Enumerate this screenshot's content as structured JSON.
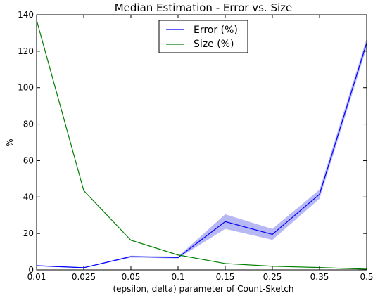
{
  "chart_data": {
    "type": "line",
    "title": "Median Estimation - Error vs. Size",
    "xlabel": "(epsilon, delta) parameter of Count-Sketch",
    "ylabel": "%",
    "categories": [
      "0.01",
      "0.025",
      "0.05",
      "0.1",
      "0.15",
      "0.25",
      "0.35",
      "0.5"
    ],
    "ylim": [
      0,
      140
    ],
    "yticks": [
      "0",
      "20",
      "40",
      "60",
      "80",
      "100",
      "120",
      "140"
    ],
    "grid": false,
    "legend_position": "top-center",
    "series": [
      {
        "name": "Error (%)",
        "color": "#0000ff",
        "band_color": "#b8b8f5",
        "values": [
          2.3,
          1.2,
          7.3,
          6.8,
          26.5,
          19.5,
          41.5,
          124.5
        ],
        "lower": [
          2.0,
          1.0,
          6.8,
          6.3,
          22.5,
          16.5,
          39.0,
          122.0
        ],
        "upper": [
          2.6,
          1.4,
          7.8,
          7.3,
          30.5,
          22.5,
          44.0,
          127.0
        ]
      },
      {
        "name": "Size (%)",
        "color": "#007f00",
        "values": [
          137.0,
          43.5,
          16.3,
          8.2,
          3.5,
          2.0,
          1.3,
          0.4
        ]
      }
    ]
  }
}
